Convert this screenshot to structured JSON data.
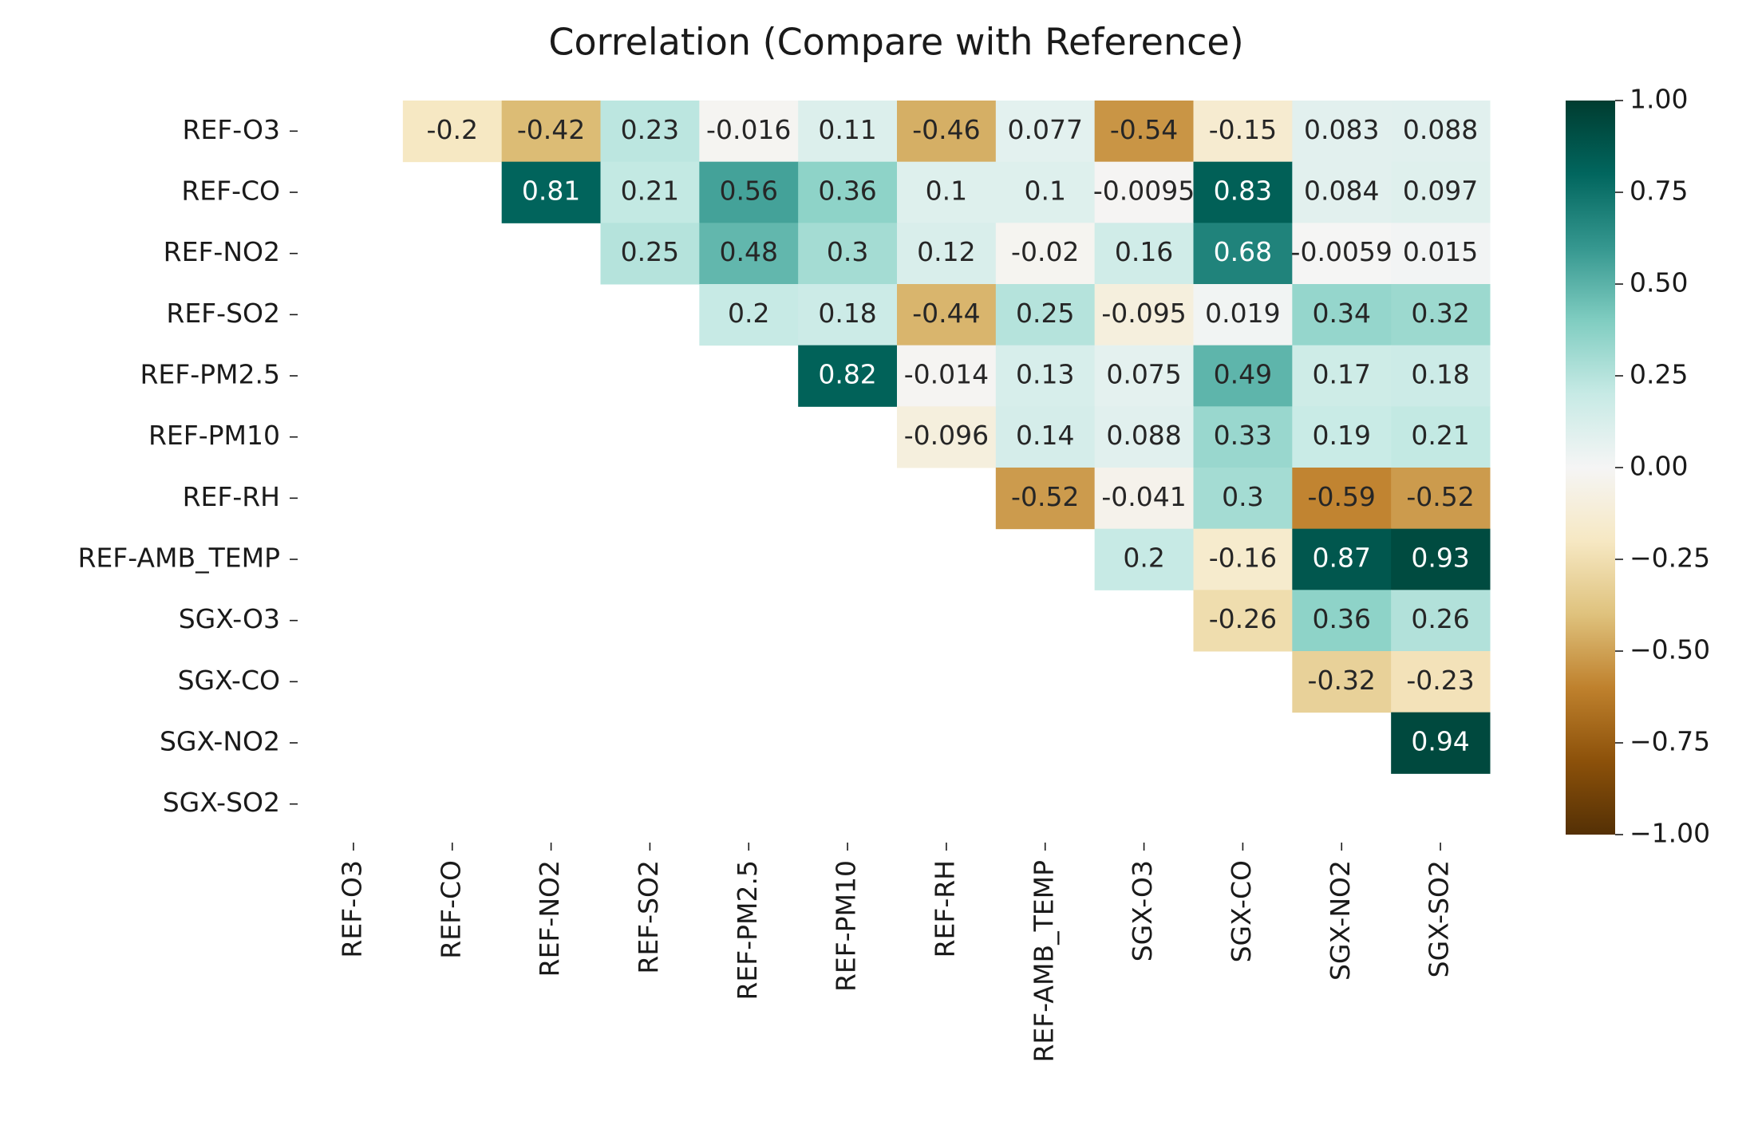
{
  "chart_data": {
    "type": "heatmap",
    "title": "Correlation (Compare with Reference)",
    "categories": [
      "REF-O3",
      "REF-CO",
      "REF-NO2",
      "REF-SO2",
      "REF-PM2.5",
      "REF-PM10",
      "REF-RH",
      "REF-AMB_TEMP",
      "SGX-O3",
      "SGX-CO",
      "SGX-NO2",
      "SGX-SO2"
    ],
    "values": [
      [
        null,
        -0.2,
        -0.42,
        0.23,
        -0.016,
        0.11,
        -0.46,
        0.077,
        -0.54,
        -0.15,
        0.083,
        0.088
      ],
      [
        null,
        null,
        0.81,
        0.21,
        0.56,
        0.36,
        0.1,
        0.1,
        -0.0095,
        0.83,
        0.084,
        0.097
      ],
      [
        null,
        null,
        null,
        0.25,
        0.48,
        0.3,
        0.12,
        -0.02,
        0.16,
        0.68,
        -0.0059,
        0.015
      ],
      [
        null,
        null,
        null,
        null,
        0.2,
        0.18,
        -0.44,
        0.25,
        -0.095,
        0.019,
        0.34,
        0.32
      ],
      [
        null,
        null,
        null,
        null,
        null,
        0.82,
        -0.014,
        0.13,
        0.075,
        0.49,
        0.17,
        0.18
      ],
      [
        null,
        null,
        null,
        null,
        null,
        null,
        -0.096,
        0.14,
        0.088,
        0.33,
        0.19,
        0.21
      ],
      [
        null,
        null,
        null,
        null,
        null,
        null,
        null,
        -0.52,
        -0.041,
        0.3,
        -0.59,
        -0.52
      ],
      [
        null,
        null,
        null,
        null,
        null,
        null,
        null,
        null,
        0.2,
        -0.16,
        0.87,
        0.93
      ],
      [
        null,
        null,
        null,
        null,
        null,
        null,
        null,
        null,
        null,
        -0.26,
        0.36,
        0.26
      ],
      [
        null,
        null,
        null,
        null,
        null,
        null,
        null,
        null,
        null,
        null,
        -0.32,
        -0.23
      ],
      [
        null,
        null,
        null,
        null,
        null,
        null,
        null,
        null,
        null,
        null,
        null,
        0.94
      ],
      [
        null,
        null,
        null,
        null,
        null,
        null,
        null,
        null,
        null,
        null,
        null,
        null
      ]
    ],
    "colormap": "BrBG",
    "clim": [
      -1,
      1
    ],
    "cticks": [
      {
        "value": -1,
        "label": "−1.00"
      },
      {
        "value": -0.75,
        "label": "−0.75"
      },
      {
        "value": -0.5,
        "label": "−0.50"
      },
      {
        "value": -0.25,
        "label": "−0.25"
      },
      {
        "value": 0,
        "label": "0.00"
      },
      {
        "value": 0.25,
        "label": "0.25"
      },
      {
        "value": 0.5,
        "label": "0.50"
      },
      {
        "value": 0.75,
        "label": "0.75"
      },
      {
        "value": 1,
        "label": "1.00"
      }
    ]
  }
}
